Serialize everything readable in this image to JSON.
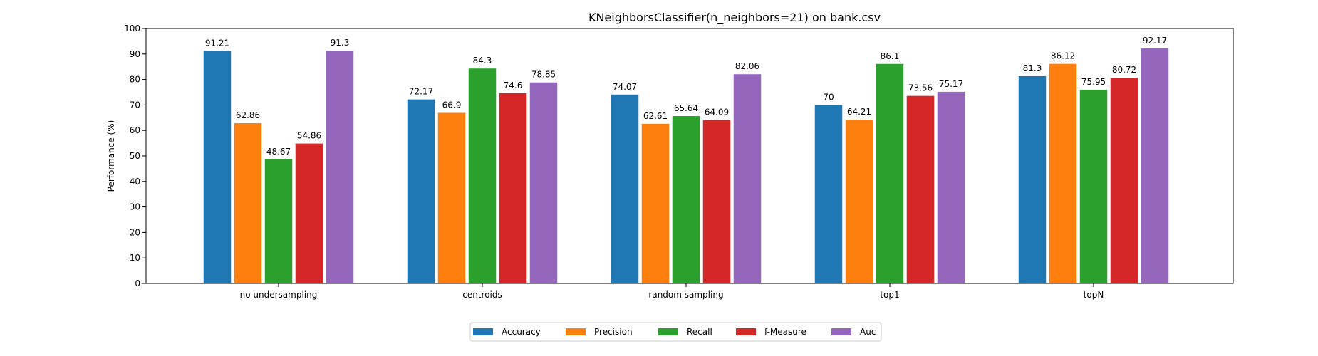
{
  "chart_data": {
    "type": "bar",
    "title": "KNeighborsClassifier(n_neighbors=21) on bank.csv",
    "xlabel": "",
    "ylabel": "Performance (%)",
    "ylim": [
      0,
      100
    ],
    "yticks": [
      0,
      10,
      20,
      30,
      40,
      50,
      60,
      70,
      80,
      90,
      100
    ],
    "grid": false,
    "legend_position": "bottom-center",
    "categories": [
      "no undersampling",
      "centroids",
      "random sampling",
      "top1",
      "topN"
    ],
    "series": [
      {
        "name": "Accuracy",
        "color": "#1f77b4",
        "values": [
          91.21,
          72.17,
          74.07,
          70,
          81.3
        ],
        "labels": [
          "91.21",
          "72.17",
          "74.07",
          "70",
          "81.3"
        ]
      },
      {
        "name": "Precision",
        "color": "#ff7f0e",
        "values": [
          62.86,
          66.9,
          62.61,
          64.21,
          86.12
        ],
        "labels": [
          "62.86",
          "66.9",
          "62.61",
          "64.21",
          "86.12"
        ]
      },
      {
        "name": "Recall",
        "color": "#2ca02c",
        "values": [
          48.67,
          84.3,
          65.64,
          86.1,
          75.95
        ],
        "labels": [
          "48.67",
          "84.3",
          "65.64",
          "86.1",
          "75.95"
        ]
      },
      {
        "name": "f-Measure",
        "color": "#d62728",
        "values": [
          54.86,
          74.6,
          64.09,
          73.56,
          80.72
        ],
        "labels": [
          "54.86",
          "74.6",
          "64.09",
          "73.56",
          "80.72"
        ]
      },
      {
        "name": "Auc",
        "color": "#9467bd",
        "values": [
          91.3,
          78.85,
          82.06,
          75.17,
          92.17
        ],
        "labels": [
          "91.3",
          "78.85",
          "82.06",
          "75.17",
          "92.17"
        ]
      }
    ]
  }
}
